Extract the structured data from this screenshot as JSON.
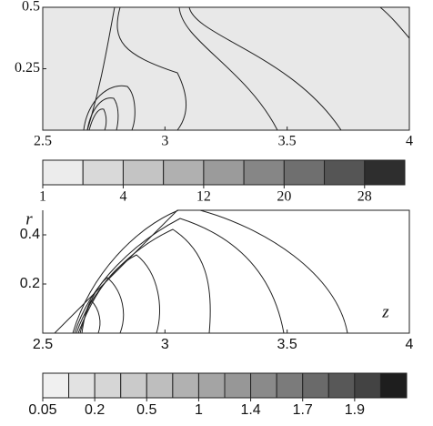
{
  "chart_data": [
    {
      "type": "contour",
      "xlim": [
        2.5,
        4
      ],
      "xticks": [
        2.5,
        3,
        3.5,
        4
      ],
      "ylim": [
        0,
        0.5
      ],
      "yticks": [
        0.25,
        0.5
      ],
      "colorbar": {
        "levels": [
          1,
          2,
          4,
          8,
          12,
          16,
          20,
          24,
          28,
          32
        ],
        "colors": [
          "#ececec",
          "#d9d9d9",
          "#c4c4c4",
          "#b0b0b0",
          "#9b9b9b",
          "#868686",
          "#6f6f6f",
          "#555555",
          "#2e2e2e"
        ],
        "ticks": [
          1,
          4,
          12,
          20,
          28
        ]
      }
    },
    {
      "type": "contour",
      "xlabel": "z",
      "ylabel": "r",
      "xlim": [
        2.5,
        4
      ],
      "xticks": [
        2.5,
        3,
        3.5,
        4
      ],
      "ylim": [
        0,
        0.5
      ],
      "yticks": [
        0.2,
        0.4
      ],
      "colorbar": {
        "levels": [
          0.05,
          0.1,
          0.2,
          0.35,
          0.5,
          0.75,
          1,
          1.2,
          1.4,
          1.55,
          1.7,
          1.8,
          1.9,
          2.0,
          2.1
        ],
        "colors": [
          "#f0f0f0",
          "#e2e2e2",
          "#d6d6d6",
          "#cacaca",
          "#bebebe",
          "#b1b1b1",
          "#a4a4a4",
          "#979797",
          "#8a8a8a",
          "#7b7b7b",
          "#6a6a6a",
          "#585858",
          "#434343",
          "#1e1e1e"
        ],
        "ticks": [
          0.05,
          0.2,
          0.5,
          1,
          1.4,
          1.7,
          1.9
        ]
      }
    }
  ]
}
